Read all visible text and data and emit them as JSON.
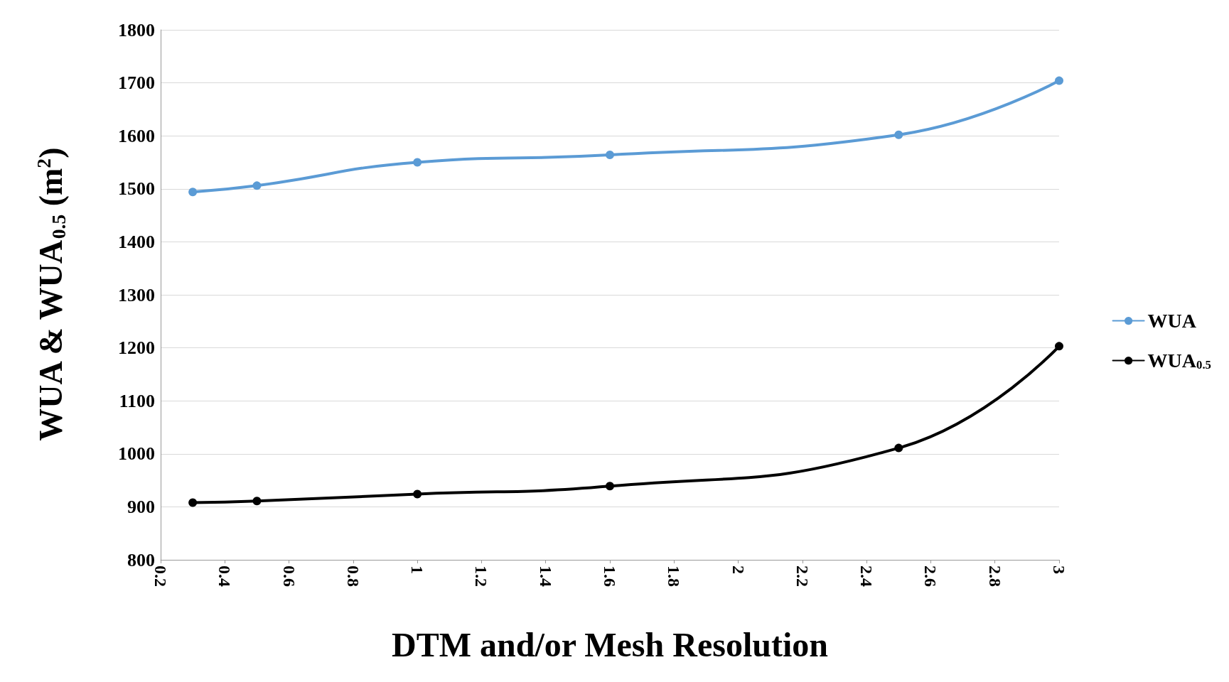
{
  "chart_data": {
    "type": "line",
    "xlabel": "DTM and/or Mesh Resolution",
    "ylabel": "WUA & WUA$_{0.5}$ (m$^{2}$)",
    "x": [
      0.3,
      0.5,
      1,
      1.6,
      2.5,
      3
    ],
    "series": [
      {
        "name": "WUA",
        "color": "#5b9bd5",
        "values": [
          1494,
          1506,
          1550,
          1564,
          1602,
          1704
        ]
      },
      {
        "name": "WUA$_{0.5}$",
        "color": "#000000",
        "values": [
          908,
          911,
          924,
          939,
          1011,
          1203
        ]
      }
    ],
    "xlim": [
      0.2,
      3
    ],
    "xticks": [
      0.2,
      0.4,
      0.6,
      0.8,
      1,
      1.2,
      1.4,
      1.6,
      1.8,
      2,
      2.2,
      2.4,
      2.6,
      2.8,
      3
    ],
    "ylim": [
      800,
      1800
    ],
    "yticks": [
      800,
      900,
      1000,
      1100,
      1200,
      1300,
      1400,
      1500,
      1600,
      1700,
      1800
    ],
    "grid": "y",
    "legend": "right",
    "marker": "circle",
    "line_style": "solid"
  }
}
